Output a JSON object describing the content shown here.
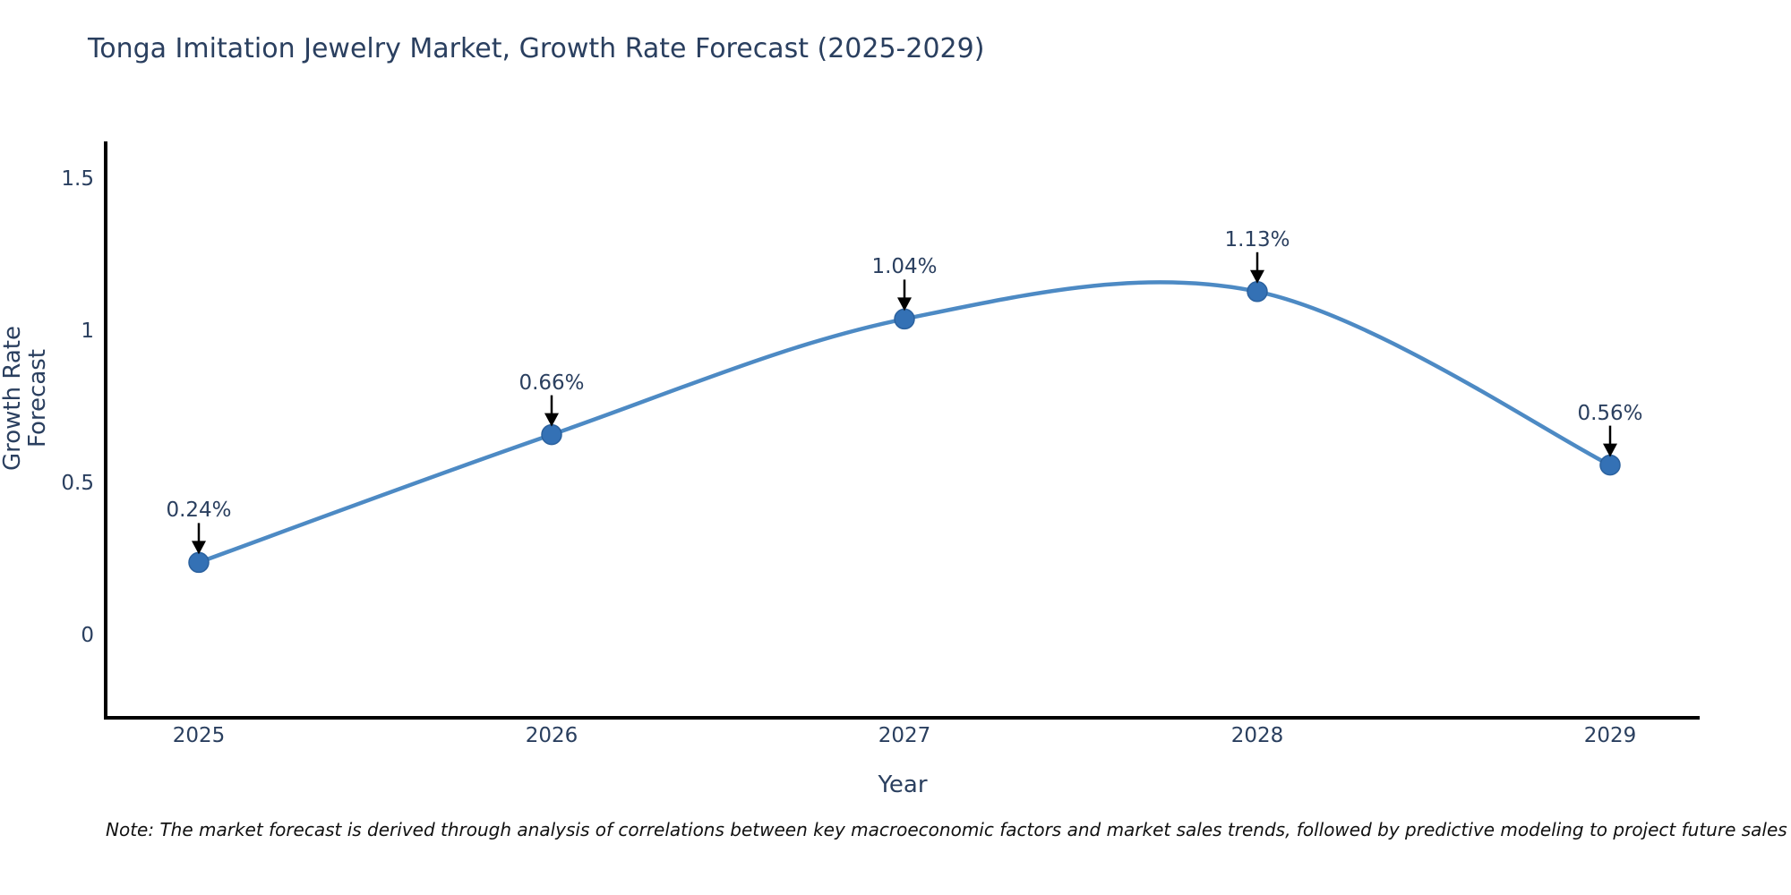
{
  "note": "Note: The market forecast is derived through analysis of correlations between key macroeconomic factors and market sales trends, followed by predictive modeling to project future sales",
  "chart_data": {
    "type": "line",
    "line_shape": "spline",
    "title": "Tonga Imitation Jewelry Market, Growth Rate Forecast (2025-2029)",
    "xlabel": "Year",
    "ylabel": "Growth Rate Forecast",
    "x": [
      "2025",
      "2026",
      "2027",
      "2028",
      "2029"
    ],
    "values": [
      0.24,
      0.66,
      1.04,
      1.13,
      0.56
    ],
    "point_labels": [
      "0.24%",
      "0.66%",
      "1.04%",
      "1.13%",
      "0.56%"
    ],
    "yticks": [
      0,
      0.5,
      1,
      1.5
    ],
    "ytick_labels": [
      "0",
      "0.5",
      "1",
      "1.5"
    ],
    "ylim": [
      -0.27,
      1.62
    ],
    "grid": false,
    "legend": false,
    "annotations_have_arrows": true,
    "colors": {
      "line": "#4d8ac4",
      "marker": "#3471b5",
      "marker_edge": "#2b619e",
      "axis": "#000000",
      "text": "#2a3f5f",
      "annotation_arrow": "#000000",
      "note_text": "#111111",
      "background": "#ffffff"
    }
  }
}
